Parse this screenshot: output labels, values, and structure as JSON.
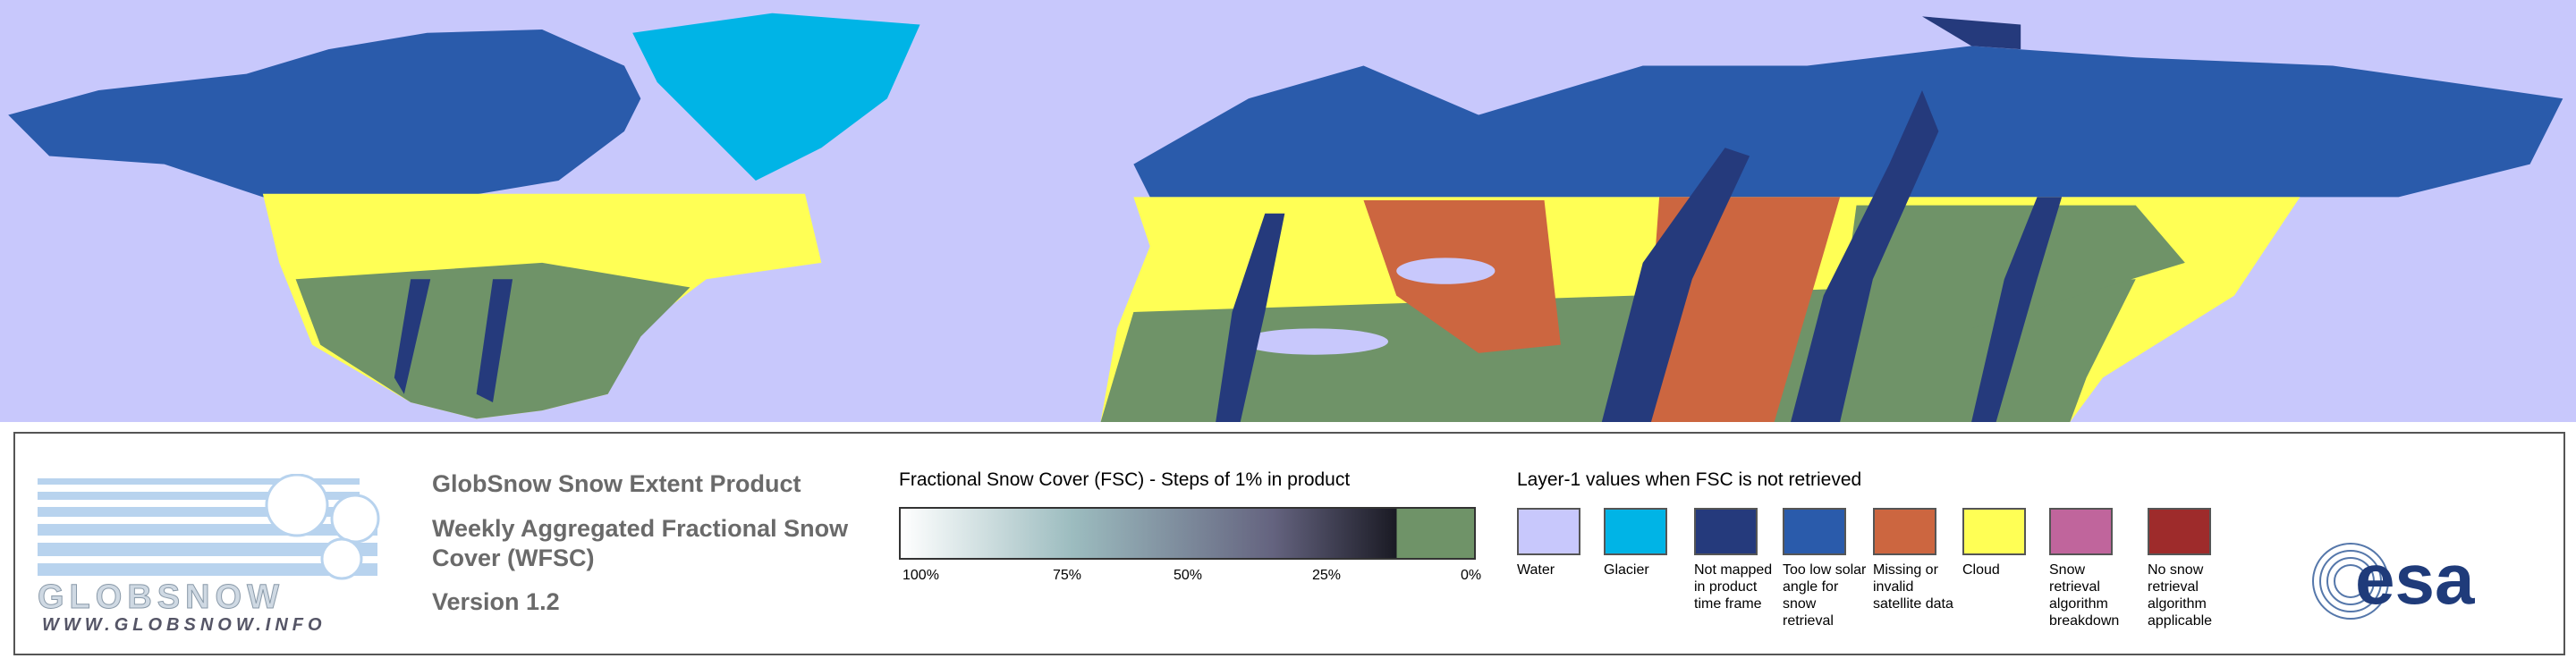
{
  "header": {
    "title": "GlobSnow Snow Extent Product",
    "subtitle": "Weekly Aggregated Fractional Snow Cover (WFSC)",
    "version": "Version 1.2"
  },
  "logo": {
    "name": "GLOBSNOW",
    "url": "WWW.GLOBSNOW.INFO",
    "agency": "esa"
  },
  "fsc_legend": {
    "title": "Fractional Snow Cover (FSC) - Steps of 1% in product",
    "labels": [
      "100%",
      "75%",
      "50%",
      "25%",
      "0%"
    ]
  },
  "layer1_legend": {
    "title": "Layer-1 values when FSC is not retrieved",
    "items": [
      {
        "label": "Water",
        "color": "#c8c8fc"
      },
      {
        "label": "Glacier",
        "color": "#00b4e6"
      },
      {
        "label": "Not mapped in product time frame",
        "color": "#253a7c"
      },
      {
        "label": "Too low solar angle for snow retrieval",
        "color": "#2a5bab"
      },
      {
        "label": "Missing or invalid satellite data",
        "color": "#cc6640"
      },
      {
        "label": "Cloud",
        "color": "#ffff55"
      },
      {
        "label": "Snow retrieval algorithm breakdown",
        "color": "#c0659c"
      },
      {
        "label": "No snow retrieval algorithm applicable",
        "color": "#9e2b2b"
      }
    ]
  }
}
